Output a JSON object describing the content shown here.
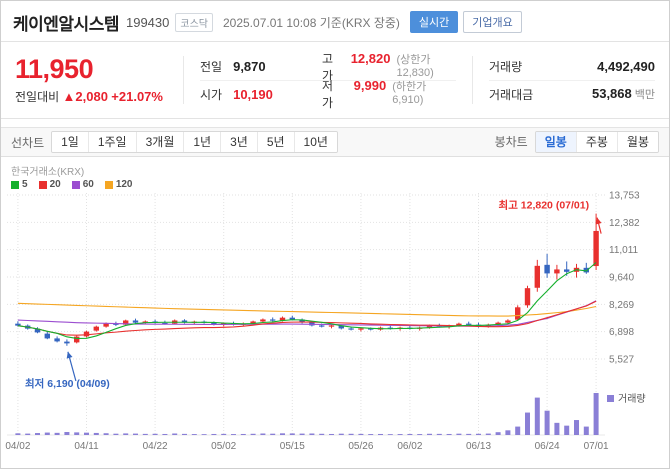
{
  "header": {
    "title": "케이엔알시스템",
    "code": "199430",
    "market": "코스닥",
    "datetime": "2025.07.01 10:08 기준(KRX 장중)",
    "realtime_button": "실시간",
    "overview_button": "기업개요"
  },
  "price": {
    "current": "11,950",
    "change_label": "전일대비",
    "change_arrow": "▲",
    "change_value": "2,080",
    "change_percent": "+21.07%",
    "up_color": "#e8222e",
    "stats": {
      "prev": {
        "label": "전일",
        "value": "9,870"
      },
      "high": {
        "label": "고가",
        "value": "12,820",
        "sub": "(상한가 12,830)"
      },
      "open": {
        "label": "시가",
        "value": "10,190"
      },
      "low": {
        "label": "저가",
        "value": "9,990",
        "sub": "(하한가 6,910)"
      },
      "volume": {
        "label": "거래량",
        "value": "4,492,490"
      },
      "amount": {
        "label": "거래대금",
        "value": "53,868",
        "unit": "백만"
      }
    }
  },
  "toolbar": {
    "left_label": "선차트",
    "left_items": [
      "1일",
      "1주일",
      "3개월",
      "1년",
      "3년",
      "5년",
      "10년"
    ],
    "right_label": "봉차트",
    "right_items": [
      "일봉",
      "주봉",
      "월봉"
    ],
    "selected": "일봉"
  },
  "chart_data": {
    "type": "candlestick",
    "exchange_label": "한국거래소(KRX)",
    "up_color": "#e8302e",
    "down_color": "#3566c0",
    "volume_color": "#8a7fd6",
    "volume_label": "거래량",
    "ylim": [
      5527,
      13753
    ],
    "y_ticks": [
      13753,
      12382,
      11011,
      9640,
      8269,
      6898,
      5527
    ],
    "x_ticks": [
      {
        "i": 0,
        "label": "04/02"
      },
      {
        "i": 7,
        "label": "04/11"
      },
      {
        "i": 14,
        "label": "04/22"
      },
      {
        "i": 21,
        "label": "05/02"
      },
      {
        "i": 28,
        "label": "05/15"
      },
      {
        "i": 35,
        "label": "05/26"
      },
      {
        "i": 40,
        "label": "06/02"
      },
      {
        "i": 47,
        "label": "06/13"
      },
      {
        "i": 54,
        "label": "06/24"
      },
      {
        "i": 59,
        "label": "07/01"
      }
    ],
    "moving_averages": [
      {
        "period": 5,
        "color": "#15b02d"
      },
      {
        "period": 20,
        "color": "#e8302e"
      },
      {
        "period": 60,
        "color": "#9b4ed0",
        "points": [
          [
            0,
            7480
          ],
          [
            6,
            7350
          ],
          [
            12,
            7280
          ],
          [
            20,
            7260
          ],
          [
            28,
            7280
          ],
          [
            36,
            7230
          ],
          [
            44,
            7180
          ],
          [
            48,
            7170
          ],
          [
            51,
            7260
          ],
          [
            54,
            7560
          ],
          [
            56,
            7880
          ],
          [
            58,
            8200
          ],
          [
            59,
            8450
          ]
        ]
      },
      {
        "period": 120,
        "color": "#f5a623",
        "points": [
          [
            0,
            8320
          ],
          [
            8,
            8180
          ],
          [
            16,
            8050
          ],
          [
            24,
            7950
          ],
          [
            32,
            7860
          ],
          [
            40,
            7760
          ],
          [
            46,
            7690
          ],
          [
            50,
            7680
          ],
          [
            53,
            7760
          ],
          [
            56,
            7900
          ],
          [
            58,
            8060
          ],
          [
            59,
            8160
          ]
        ]
      }
    ],
    "candles": [
      [
        7300,
        7420,
        7150,
        7200,
        180000
      ],
      [
        7200,
        7260,
        7000,
        7050,
        150000
      ],
      [
        7050,
        7120,
        6820,
        6860,
        210000
      ],
      [
        6800,
        6900,
        6520,
        6560,
        260000
      ],
      [
        6560,
        6660,
        6360,
        6410,
        230000
      ],
      [
        6400,
        6510,
        6190,
        6310,
        320000
      ],
      [
        6360,
        6700,
        6310,
        6650,
        280000
      ],
      [
        6660,
        6950,
        6610,
        6900,
        250000
      ],
      [
        6950,
        7200,
        6900,
        7150,
        220000
      ],
      [
        7150,
        7360,
        7100,
        7300,
        190000
      ],
      [
        7300,
        7400,
        7180,
        7240,
        140000
      ],
      [
        7250,
        7500,
        7210,
        7460,
        170000
      ],
      [
        7460,
        7550,
        7310,
        7350,
        150000
      ],
      [
        7350,
        7460,
        7260,
        7410,
        120000
      ],
      [
        7410,
        7500,
        7300,
        7340,
        130000
      ],
      [
        7340,
        7450,
        7250,
        7290,
        110000
      ],
      [
        7300,
        7510,
        7260,
        7460,
        160000
      ],
      [
        7460,
        7520,
        7310,
        7350,
        120000
      ],
      [
        7350,
        7450,
        7260,
        7400,
        100000
      ],
      [
        7400,
        7460,
        7300,
        7340,
        90000
      ],
      [
        7340,
        7410,
        7210,
        7250,
        110000
      ],
      [
        7250,
        7360,
        7160,
        7310,
        120000
      ],
      [
        7310,
        7400,
        7210,
        7260,
        100000
      ],
      [
        7260,
        7360,
        7160,
        7300,
        110000
      ],
      [
        7300,
        7450,
        7250,
        7410,
        130000
      ],
      [
        7410,
        7560,
        7360,
        7510,
        160000
      ],
      [
        7510,
        7610,
        7410,
        7450,
        140000
      ],
      [
        7460,
        7660,
        7410,
        7600,
        180000
      ],
      [
        7600,
        7700,
        7460,
        7510,
        170000
      ],
      [
        7510,
        7560,
        7310,
        7360,
        150000
      ],
      [
        7360,
        7410,
        7160,
        7210,
        160000
      ],
      [
        7210,
        7310,
        7110,
        7160,
        130000
      ],
      [
        7160,
        7260,
        7060,
        7210,
        110000
      ],
      [
        7210,
        7260,
        7010,
        7060,
        140000
      ],
      [
        7060,
        7160,
        6960,
        7010,
        130000
      ],
      [
        7010,
        7110,
        6910,
        7060,
        120000
      ],
      [
        7060,
        7110,
        6960,
        7000,
        100000
      ],
      [
        7000,
        7150,
        6950,
        7100,
        110000
      ],
      [
        7100,
        7200,
        7000,
        7050,
        90000
      ],
      [
        7050,
        7150,
        6950,
        7100,
        100000
      ],
      [
        7100,
        7200,
        7000,
        7050,
        110000
      ],
      [
        7050,
        7150,
        6950,
        7100,
        100000
      ],
      [
        7100,
        7250,
        7050,
        7200,
        130000
      ],
      [
        7200,
        7300,
        7100,
        7150,
        120000
      ],
      [
        7150,
        7250,
        7050,
        7200,
        110000
      ],
      [
        7200,
        7350,
        7150,
        7300,
        140000
      ],
      [
        7300,
        7400,
        7200,
        7250,
        120000
      ],
      [
        7250,
        7350,
        7100,
        7150,
        130000
      ],
      [
        7150,
        7300,
        7100,
        7250,
        150000
      ],
      [
        7250,
        7400,
        7200,
        7350,
        300000
      ],
      [
        7350,
        7520,
        7300,
        7460,
        500000
      ],
      [
        7500,
        8220,
        7460,
        8120,
        900000
      ],
      [
        8220,
        9200,
        8100,
        9080,
        2400000
      ],
      [
        9100,
        10500,
        8900,
        10200,
        4000000
      ],
      [
        10250,
        10800,
        9600,
        9820,
        2600000
      ],
      [
        9820,
        10250,
        9510,
        10020,
        1300000
      ],
      [
        10020,
        10420,
        9700,
        9900,
        1000000
      ],
      [
        9900,
        10300,
        9610,
        10100,
        1600000
      ],
      [
        10100,
        10350,
        9800,
        9870,
        900000
      ],
      [
        10190,
        12820,
        9990,
        11950,
        4492490
      ]
    ],
    "annotations": [
      {
        "type": "high",
        "i": 59,
        "value": 12820,
        "text": "최고 12,820 (07/01)",
        "color": "#e8302e"
      },
      {
        "type": "low",
        "i": 5,
        "value": 6190,
        "text": "최저 6,190 (04/09)",
        "color": "#3566c0"
      }
    ]
  }
}
